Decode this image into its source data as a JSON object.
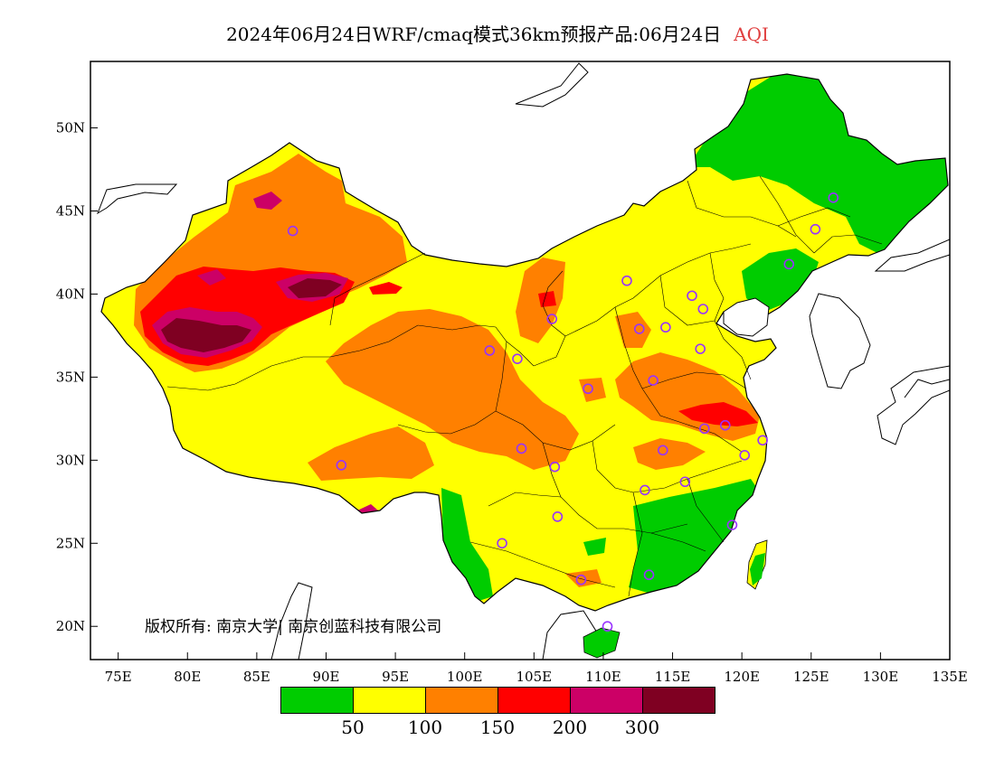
{
  "title": {
    "main": "2024年06月24日WRF/cmaq模式36km预报产品:06月24日",
    "variable": "AQI"
  },
  "axes": {
    "x_ticks": [
      "75E",
      "80E",
      "85E",
      "90E",
      "95E",
      "100E",
      "105E",
      "110E",
      "115E",
      "120E",
      "125E",
      "130E",
      "135E"
    ],
    "y_ticks": [
      "50N",
      "45N",
      "40N",
      "35N",
      "30N",
      "25N",
      "20N"
    ],
    "lon_range": [
      73,
      135
    ],
    "lat_range": [
      18,
      54
    ]
  },
  "copyright": "版权所有: 南京大学| 南京创蓝科技有限公司",
  "colorbar": {
    "colors": [
      "#00cc00",
      "#ffff00",
      "#ff8000",
      "#ff0000",
      "#cc0066",
      "#7f0022"
    ],
    "labels": [
      "50",
      "100",
      "150",
      "200",
      "300"
    ]
  },
  "colors": {
    "good": "#00cc00",
    "moderate": "#ffff00",
    "unhealthy_sensitive": "#ff8000",
    "unhealthy": "#ff0000",
    "very_unhealthy": "#cc0066",
    "hazardous": "#7f0022",
    "title_accent": "#e04040",
    "station_marker": "#9933ff"
  },
  "stations": [
    {
      "lon": 87.6,
      "lat": 43.8
    },
    {
      "lon": 91.1,
      "lat": 29.7
    },
    {
      "lon": 101.8,
      "lat": 36.6
    },
    {
      "lon": 103.8,
      "lat": 36.1
    },
    {
      "lon": 106.3,
      "lat": 38.5
    },
    {
      "lon": 111.7,
      "lat": 40.8
    },
    {
      "lon": 112.6,
      "lat": 37.9
    },
    {
      "lon": 114.5,
      "lat": 38.0
    },
    {
      "lon": 116.4,
      "lat": 39.9
    },
    {
      "lon": 117.2,
      "lat": 39.1
    },
    {
      "lon": 123.4,
      "lat": 41.8
    },
    {
      "lon": 125.3,
      "lat": 43.9
    },
    {
      "lon": 126.6,
      "lat": 45.8
    },
    {
      "lon": 117.0,
      "lat": 36.7
    },
    {
      "lon": 113.6,
      "lat": 34.8
    },
    {
      "lon": 108.9,
      "lat": 34.3
    },
    {
      "lon": 117.3,
      "lat": 31.9
    },
    {
      "lon": 118.8,
      "lat": 32.1
    },
    {
      "lon": 121.5,
      "lat": 31.2
    },
    {
      "lon": 120.2,
      "lat": 30.3
    },
    {
      "lon": 114.3,
      "lat": 30.6
    },
    {
      "lon": 113.0,
      "lat": 28.2
    },
    {
      "lon": 115.9,
      "lat": 28.7
    },
    {
      "lon": 119.3,
      "lat": 26.1
    },
    {
      "lon": 113.3,
      "lat": 23.1
    },
    {
      "lon": 110.3,
      "lat": 20.0
    },
    {
      "lon": 108.4,
      "lat": 22.8
    },
    {
      "lon": 106.7,
      "lat": 26.6
    },
    {
      "lon": 102.7,
      "lat": 25.0
    },
    {
      "lon": 104.1,
      "lat": 30.7
    },
    {
      "lon": 106.5,
      "lat": 29.6
    }
  ]
}
